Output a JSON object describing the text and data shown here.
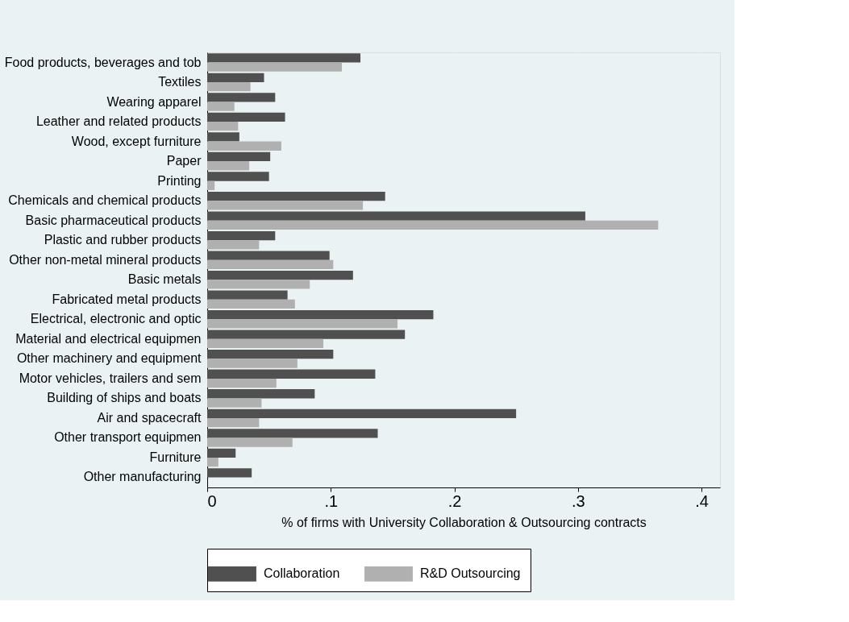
{
  "chart_data": {
    "type": "bar",
    "orientation": "horizontal",
    "categories": [
      "Food products, beverages and tob",
      "Textiles",
      "Wearing apparel",
      "Leather and related products",
      "Wood, except furniture",
      "Paper",
      "Printing",
      "Chemicals and chemical products",
      "Basic pharmaceutical products",
      "Plastic and rubber products",
      "Other non-metal mineral products",
      "Basic metals",
      "Fabricated metal products",
      "Electrical, electronic and optic",
      "Material and electrical equipmen",
      "Other machinery and equipment",
      "Motor vehicles, trailers and sem",
      "Building of ships and boats",
      "Air and spacecraft",
      "Other transport equipmen",
      "Furniture",
      "Other manufacturing"
    ],
    "series": [
      {
        "name": "Collaboration",
        "color": "#505050",
        "values": [
          0.124,
          0.046,
          0.055,
          0.063,
          0.026,
          0.051,
          0.05,
          0.144,
          0.306,
          0.055,
          0.099,
          0.118,
          0.065,
          0.183,
          0.16,
          0.102,
          0.136,
          0.087,
          0.25,
          0.138,
          0.023,
          0.036
        ]
      },
      {
        "name": "R&D Outsourcing",
        "color": "#b0b0b0",
        "values": [
          0.109,
          0.035,
          0.022,
          0.025,
          0.06,
          0.034,
          0.006,
          0.126,
          0.365,
          0.042,
          0.102,
          0.083,
          0.071,
          0.154,
          0.094,
          0.073,
          0.056,
          0.044,
          0.042,
          0.069,
          0.009,
          0
        ]
      }
    ],
    "xlabel": "% of firms with University Collaboration & Outsourcing contracts",
    "xlim": [
      0,
      0.415
    ],
    "xticks": [
      0,
      {
        "value": 0.1,
        "label": ".1"
      },
      {
        "value": 0.2,
        "label": ".2"
      },
      {
        "value": 0.3,
        "label": ".3"
      },
      {
        "value": 0.4,
        "label": ".4"
      }
    ],
    "grid": "x",
    "legend": "bottom"
  }
}
